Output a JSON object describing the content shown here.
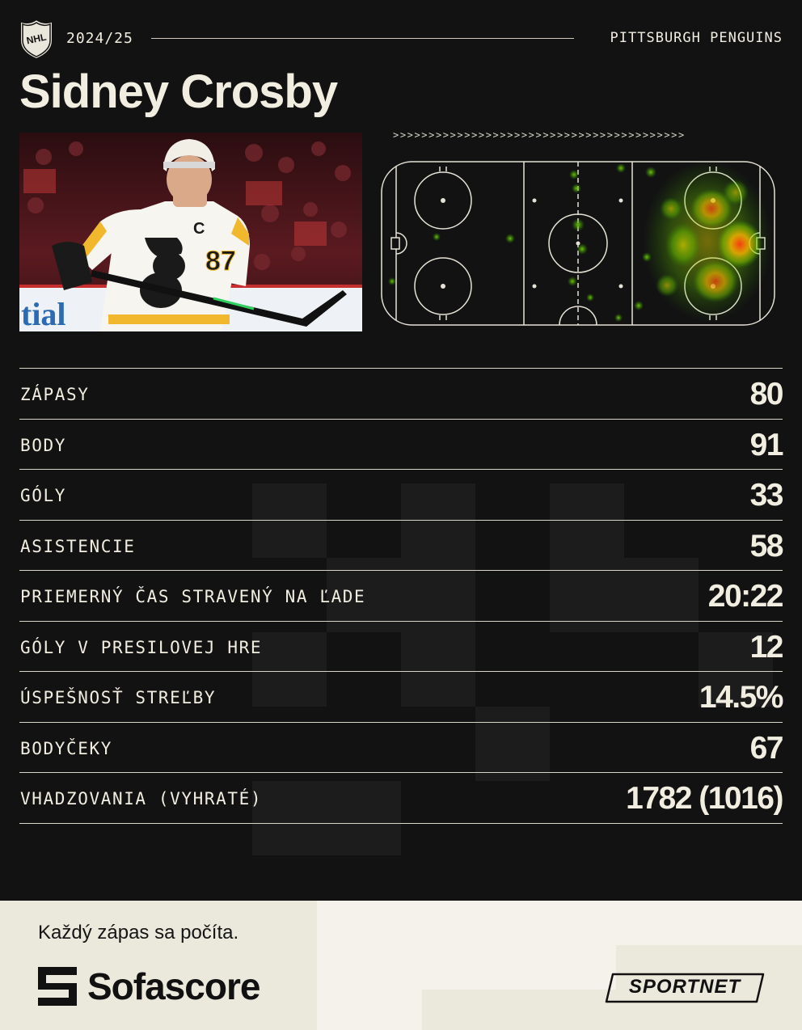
{
  "header": {
    "league_logo_text": "NHL",
    "season": "2024/25",
    "team": "PITTSBURGH PENGUINS"
  },
  "player": {
    "name": "Sidney Crosby",
    "jersey_number": "87",
    "jersey_letter": "C",
    "photo_ad_text": "tial"
  },
  "heatmap": {
    "arrows": ">>>>>>>>>>>>>>>>>>>>>>>>>>>>>>>>>>>>>>>>>"
  },
  "stats": [
    {
      "label": "ZÁPASY",
      "value": "80"
    },
    {
      "label": "BODY",
      "value": "91"
    },
    {
      "label": "GÓLY",
      "value": "33"
    },
    {
      "label": "ASISTENCIE",
      "value": "58"
    },
    {
      "label": "PRIEMERNÝ ČAS STRAVENÝ NA ĽADE",
      "value": "20:22"
    },
    {
      "label": "GÓLY V PRESILOVEJ HRE",
      "value": "12"
    },
    {
      "label": "ÚSPEŠNOSŤ STREĽBY",
      "value": "14.5%"
    },
    {
      "label": "BODYČEKY",
      "value": "67"
    },
    {
      "label": "VHADZOVANIA (VYHRATÉ)",
      "value": "1782 (1016)"
    }
  ],
  "footer": {
    "tagline": "Každý zápas sa počíta.",
    "brand": "Sofascore",
    "partner": "SPORTNET"
  },
  "colors": {
    "background": "#121212",
    "text": "#f1ede0",
    "footer_bg": "#ebe8dc",
    "penguins_gold": "#f1b82d"
  }
}
